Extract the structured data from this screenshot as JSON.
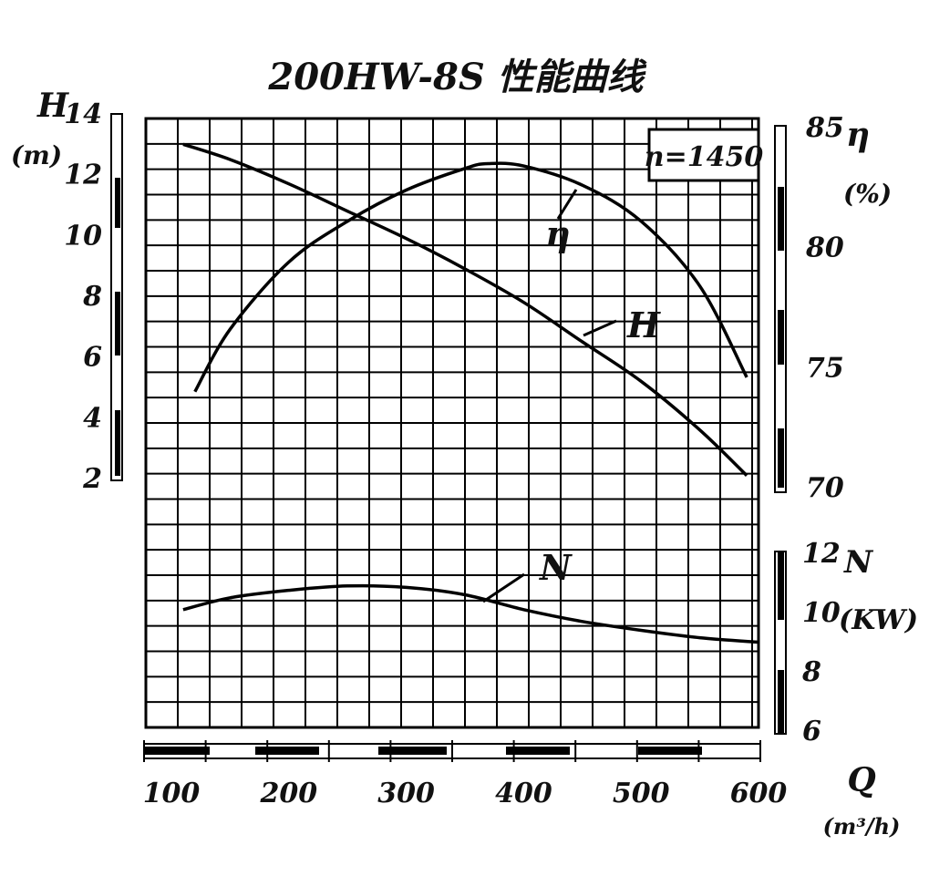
{
  "chart_data": {
    "type": "line",
    "title": "200HW-8S 性能曲线",
    "annotation": "n=1450",
    "x": {
      "label": "Q",
      "unit": "(m³/h)",
      "range": [
        100,
        600
      ],
      "ticks": [
        "100",
        "200",
        "300",
        "400",
        "500",
        "600"
      ]
    },
    "axes": {
      "head": {
        "label": "H",
        "unit": "(m)",
        "range": [
          2,
          14
        ],
        "ticks": [
          "14",
          "12",
          "10",
          "8",
          "6",
          "4",
          "2"
        ]
      },
      "efficiency": {
        "label": "η",
        "unit": "(%)",
        "range": [
          70,
          85
        ],
        "ticks": [
          "85",
          "80",
          "75",
          "70"
        ]
      },
      "power": {
        "label": "N",
        "unit": "(KW)",
        "range": [
          6,
          12
        ],
        "ticks": [
          "12",
          "10",
          "8",
          "6"
        ]
      }
    },
    "grid": true,
    "series": [
      {
        "name": "H",
        "axis": "head",
        "x": [
          110,
          150,
          200,
          250,
          300,
          350,
          400,
          450,
          500,
          550,
          590
        ],
        "y": [
          13.0,
          12.5,
          11.7,
          10.8,
          9.9,
          8.9,
          7.8,
          6.5,
          5.2,
          3.6,
          2.1
        ]
      },
      {
        "name": "η",
        "axis": "efficiency",
        "x": [
          120,
          150,
          200,
          250,
          300,
          350,
          370,
          400,
          450,
          500,
          550,
          590
        ],
        "y": [
          74.0,
          76.6,
          79.4,
          81.1,
          82.4,
          83.3,
          83.5,
          83.4,
          82.6,
          81.1,
          78.4,
          74.6
        ]
      },
      {
        "name": "N",
        "axis": "power",
        "x": [
          110,
          150,
          200,
          250,
          300,
          350,
          400,
          450,
          500,
          550,
          600
        ],
        "y": [
          10.1,
          10.5,
          10.75,
          10.9,
          10.85,
          10.6,
          10.1,
          9.7,
          9.4,
          9.15,
          9.0
        ]
      }
    ],
    "curve_labels": [
      "η",
      "H",
      "N"
    ]
  }
}
